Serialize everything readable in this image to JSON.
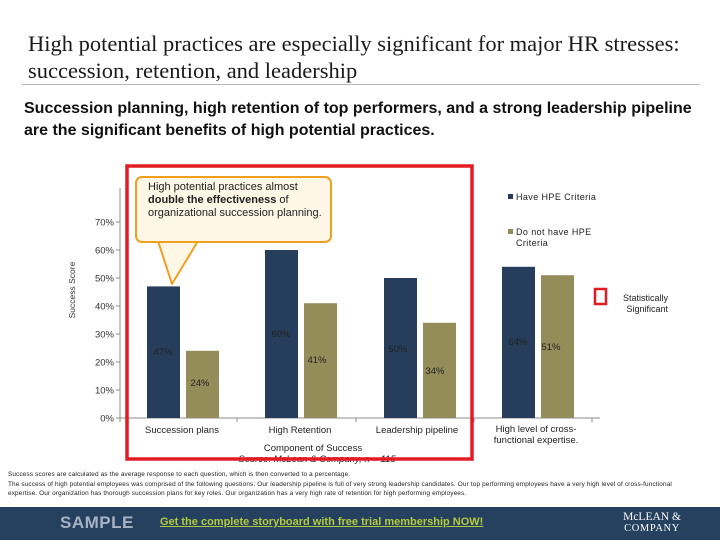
{
  "slide": {
    "title": "High potential practices are especially significant for major HR stresses: succession, retention, and leadership",
    "subtitle": "Succession planning, high retention of top performers, and a strong leadership pipeline are the significant benefits of high potential practices."
  },
  "callout": {
    "text_before": "High potential practices almost ",
    "text_bold": "double the effectiveness",
    "text_after": " of organizational succession planning."
  },
  "chart_data": {
    "type": "bar",
    "ylabel": "Success Score",
    "xlabel": "Component of Success",
    "ylim": [
      0,
      70
    ],
    "yticks": [
      "0%",
      "10%",
      "20%",
      "30%",
      "40%",
      "50%",
      "60%",
      "70%"
    ],
    "categories": [
      "Succession plans",
      "High Retention",
      "Leadership pipeline",
      "High level of cross-functional expertise."
    ],
    "series": [
      {
        "name": "Have HPE Criteria",
        "color": "#263e5c",
        "values": [
          47,
          60,
          50,
          54
        ],
        "labels": [
          "47%",
          "60%",
          "50%",
          "54%"
        ]
      },
      {
        "name": "Do not have HPE Criteria",
        "color": "#958d59",
        "values": [
          24,
          41,
          34,
          51
        ],
        "labels": [
          "24%",
          "41%",
          "34%",
          "51%"
        ]
      }
    ],
    "significance_legend": "Statistically Significant",
    "significant_categories": [
      0,
      1,
      2
    ],
    "source": "Source: McLean & Company, n = 115"
  },
  "footnote": {
    "line1": "Success scores are calculated as the average response to each question, which is then converted to a percentage.",
    "line2": "The success of high potential employees was comprised of the following questions: Our leadership pipeline is full of very strong leadership candidates. Our top performing employees have a very high level of cross-functional expertise. Our organization has thorough succession plans for key roles. Our organization has a very high rate of retention for high performing employees."
  },
  "footer": {
    "sample": "SAMPLE",
    "cta": "Get the complete storyboard with free trial membership NOW!",
    "logo_line1": "McLEAN &",
    "logo_line2": "COMPANY"
  },
  "colors": {
    "bar_have": "#263e5c",
    "bar_not": "#958d59",
    "highlight": "#e31b23",
    "callout_border": "#f0a020",
    "footer_bg": "#26405f",
    "cta": "#b2cc3d"
  }
}
